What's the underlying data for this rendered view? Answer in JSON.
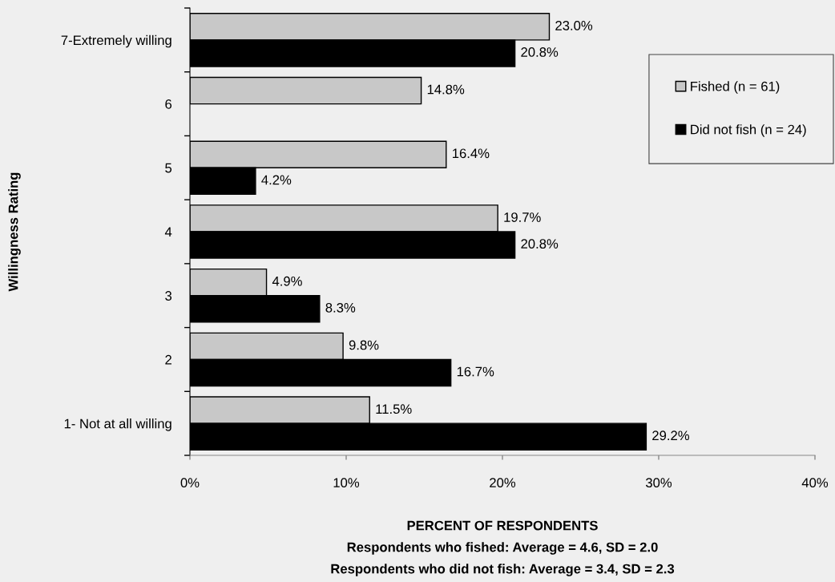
{
  "chart_data": {
    "type": "bar",
    "orientation": "horizontal",
    "ylabel": "Willingness Rating",
    "xlabel": "PERCENT OF RESPONDENTS",
    "annotations": [
      "Respondents who fished: Average = 4.6, SD = 2.0",
      "Respondents who did not fish: Average = 3.4, SD = 2.3"
    ],
    "categories": [
      "7-Extremely willing",
      "6",
      "5",
      "4",
      "3",
      "2",
      "1- Not at all willing"
    ],
    "series": [
      {
        "name": "Fished (n = 61)",
        "color": "#c8c8c8",
        "values": [
          23.0,
          14.8,
          16.4,
          19.7,
          4.9,
          9.8,
          11.5
        ],
        "value_labels": [
          "23.0%",
          "14.8%",
          "16.4%",
          "19.7%",
          "4.9%",
          "9.8%",
          "11.5%"
        ]
      },
      {
        "name": "Did not fish (n = 24)",
        "color": "#000000",
        "values": [
          20.8,
          null,
          4.2,
          20.8,
          8.3,
          16.7,
          29.2
        ],
        "value_labels": [
          "20.8%",
          null,
          "4.2%",
          "20.8%",
          "8.3%",
          "16.7%",
          "29.2%"
        ]
      }
    ],
    "xlim": [
      0,
      40
    ],
    "xticks": [
      {
        "value": 0,
        "label": "0%"
      },
      {
        "value": 10,
        "label": "10%"
      },
      {
        "value": 20,
        "label": "20%"
      },
      {
        "value": 30,
        "label": "30%"
      },
      {
        "value": 40,
        "label": "40%"
      }
    ],
    "grid": false,
    "legend": "top right"
  }
}
